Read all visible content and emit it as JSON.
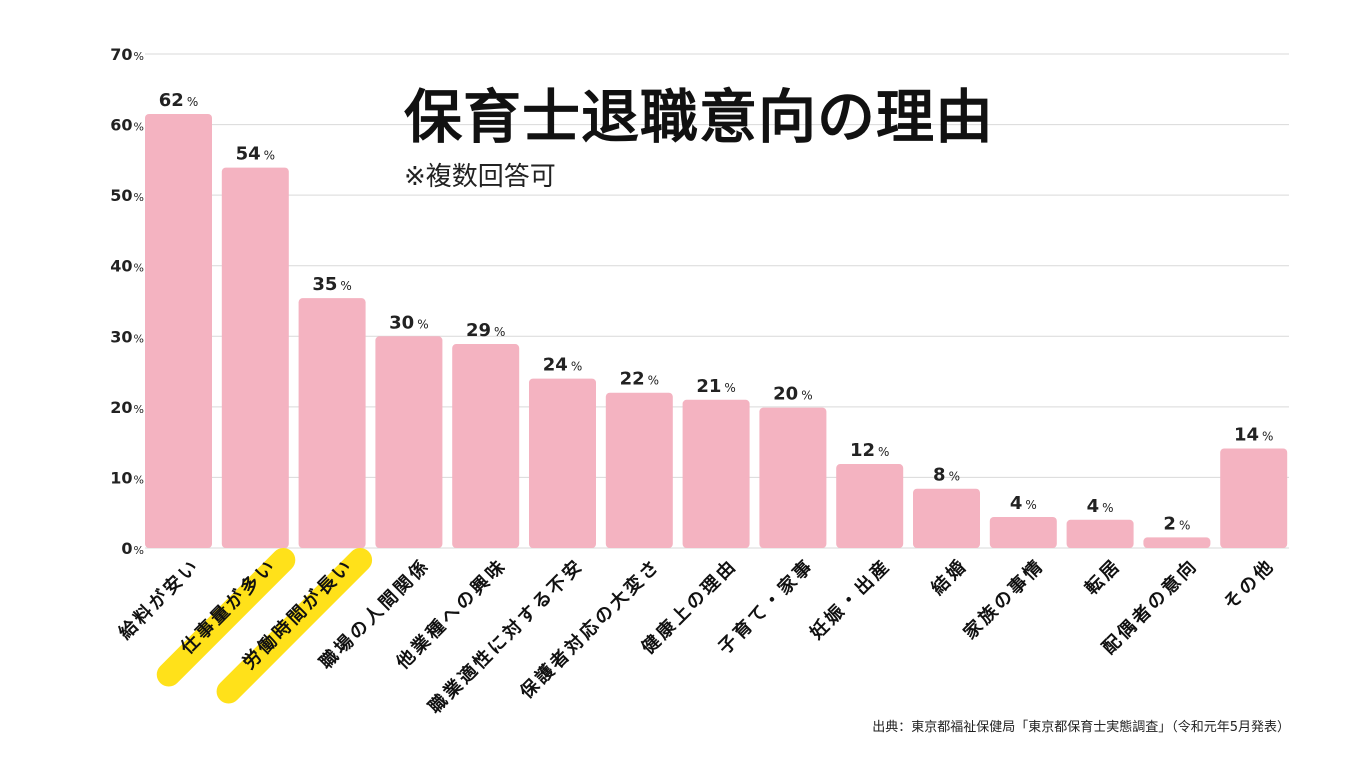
{
  "chart_data": {
    "type": "bar",
    "title": "保育士退職意向の理由",
    "subtitle": "※複数回答可",
    "source": "出典：東京都福祉保健局「東京都保育士実態調査」（令和元年5月発表）",
    "unit": "%",
    "categories": [
      "給料が安い",
      "仕事量が多い",
      "労働時間が長い",
      "職場の人間関係",
      "他業種への興味",
      "職業適性に対する不安",
      "保護者対応の大変さ",
      "健康上の理由",
      "子育て・家事",
      "妊娠・出産",
      "結婚",
      "家族の事情",
      "転居",
      "配偶者の意向",
      "その他"
    ],
    "values": [
      62,
      54,
      35,
      30,
      29,
      24,
      22,
      21,
      20,
      12,
      8,
      4,
      4,
      2,
      14
    ],
    "plotted_values": [
      61.5,
      53.9,
      35.4,
      30.0,
      28.9,
      24.0,
      22.0,
      21.0,
      19.9,
      11.9,
      8.4,
      4.4,
      4.0,
      1.5,
      14.1
    ],
    "highlighted": [
      "仕事量が多い",
      "労働時間が長い"
    ],
    "yticks": [
      "0",
      "10",
      "20",
      "30",
      "40",
      "50",
      "60",
      "70"
    ],
    "ylim": [
      0,
      70
    ],
    "grid": true,
    "colors": {
      "bar": "#f4b3c1",
      "highlight": "#ffe11a",
      "grid": "#d9d9d9"
    }
  }
}
